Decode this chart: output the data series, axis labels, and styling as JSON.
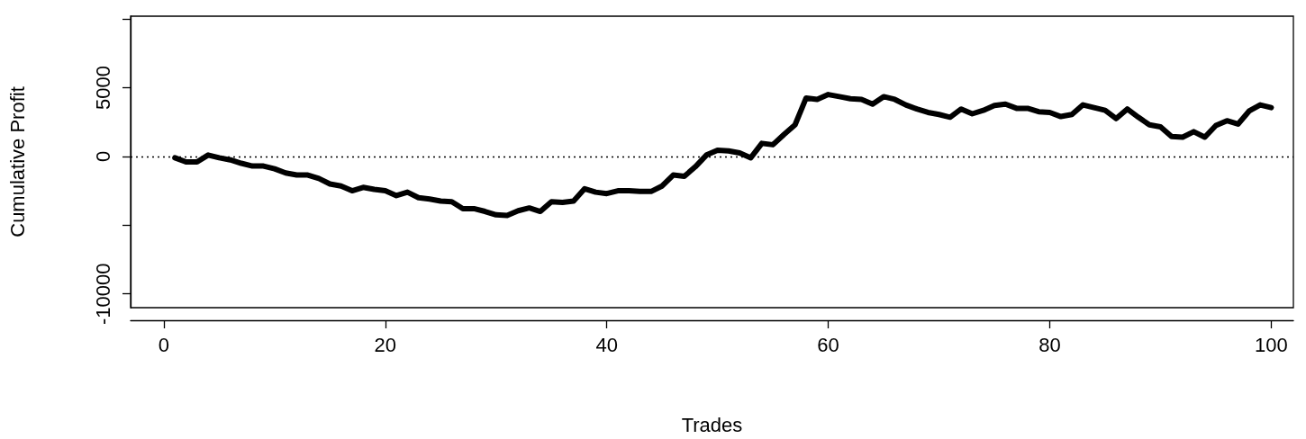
{
  "chart_data": {
    "type": "line",
    "xlabel": "Trades",
    "ylabel": "Cumulative Profit",
    "x": [
      1,
      2,
      3,
      4,
      5,
      6,
      7,
      8,
      9,
      10,
      11,
      12,
      13,
      14,
      15,
      16,
      17,
      18,
      19,
      20,
      21,
      22,
      23,
      24,
      25,
      26,
      27,
      28,
      29,
      30,
      31,
      32,
      33,
      34,
      35,
      36,
      37,
      38,
      39,
      40,
      41,
      42,
      43,
      44,
      45,
      46,
      47,
      48,
      49,
      50,
      51,
      52,
      53,
      54,
      55,
      56,
      57,
      58,
      59,
      60,
      61,
      62,
      63,
      64,
      65,
      66,
      67,
      68,
      69,
      70,
      71,
      72,
      73,
      74,
      75,
      76,
      77,
      78,
      79,
      80,
      81,
      82,
      83,
      84,
      85,
      86,
      87,
      88,
      89,
      90,
      91,
      92,
      93,
      94,
      95,
      96,
      97,
      98,
      99,
      100
    ],
    "series": [
      {
        "color": "#000000",
        "values": [
          -100,
          -400,
          -400,
          100,
          -100,
          -250,
          -500,
          -700,
          -700,
          -900,
          -1200,
          -1350,
          -1350,
          -1600,
          -2000,
          -2150,
          -2500,
          -2250,
          -2400,
          -2500,
          -2850,
          -2600,
          -3000,
          -3100,
          -3250,
          -3300,
          -3800,
          -3800,
          -4000,
          -4250,
          -4300,
          -3950,
          -3750,
          -4000,
          -3300,
          -3350,
          -3250,
          -2350,
          -2600,
          -2700,
          -2500,
          -2500,
          -2550,
          -2550,
          -2150,
          -1350,
          -1450,
          -750,
          100,
          450,
          400,
          250,
          -100,
          950,
          850,
          1600,
          2300,
          4250,
          4150,
          4500,
          4350,
          4200,
          4150,
          3800,
          4350,
          4150,
          3750,
          3450,
          3200,
          3050,
          2850,
          3450,
          3100,
          3350,
          3700,
          3800,
          3500,
          3500,
          3250,
          3200,
          2900,
          3050,
          3750,
          3550,
          3350,
          2750,
          3450,
          2850,
          2300,
          2150,
          1450,
          1400,
          1800,
          1400,
          2250,
          2600,
          2350,
          3300,
          3750,
          3550
        ]
      }
    ],
    "xlim": [
      -3,
      102
    ],
    "xticks": [
      0,
      20,
      40,
      60,
      80,
      100
    ],
    "ylim": [
      -11000,
      10200
    ],
    "yticks": [
      -10000,
      {
        "value": -5000,
        "label": null
      },
      0,
      5000,
      {
        "value": 10000,
        "label": null
      }
    ],
    "ref_lines": [
      {
        "axis": "y",
        "value": 0,
        "line_style": "dotted",
        "color": "#000000"
      }
    ],
    "marker": "none",
    "line_style": "solid"
  }
}
